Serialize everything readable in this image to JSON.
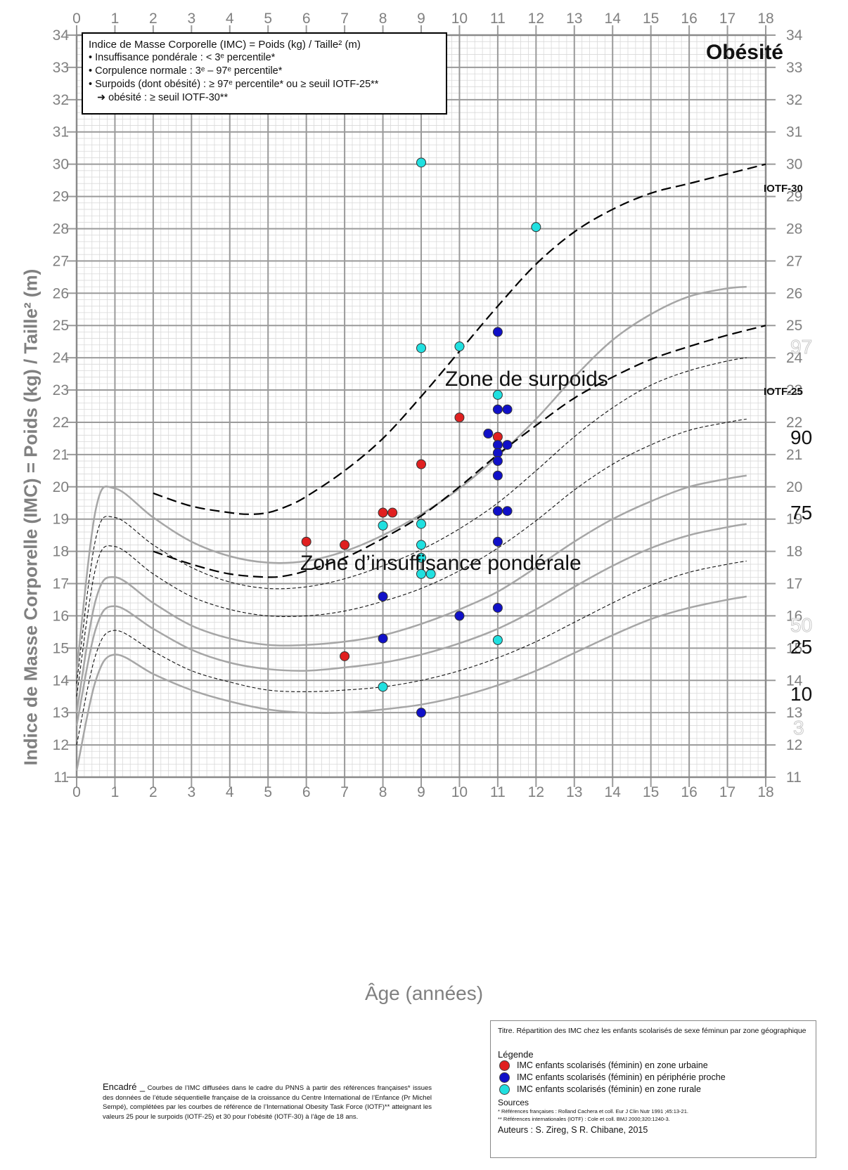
{
  "chart_data": {
    "type": "scatter",
    "title": "",
    "xlabel": "Âge (années)",
    "ylabel": "Indice de Masse Corporelle (IMC) = Poids (kg) / Taille² (m)",
    "xlim": [
      0,
      18
    ],
    "ylim": [
      11,
      34
    ],
    "x_ticks": [
      0,
      1,
      2,
      3,
      4,
      5,
      6,
      7,
      8,
      9,
      10,
      11,
      12,
      13,
      14,
      15,
      16,
      17,
      18
    ],
    "y_ticks": [
      11,
      12,
      13,
      14,
      15,
      16,
      17,
      18,
      19,
      20,
      21,
      22,
      23,
      24,
      25,
      26,
      27,
      28,
      29,
      30,
      31,
      32,
      33,
      34
    ],
    "grid": true,
    "colors": {
      "urbain": "#e02020",
      "periphery": "#1010c8",
      "rural": "#20e0e0",
      "percentile": "#a6a6a6",
      "iotf": "#000000"
    },
    "reference_curves": [
      {
        "name": "3",
        "style": "solid-gray",
        "x": [
          0,
          0.5,
          1,
          2,
          3,
          4,
          5,
          6,
          7,
          8,
          9,
          10,
          11,
          12,
          13,
          14,
          15,
          16,
          17,
          17.5
        ],
        "y": [
          11.2,
          14.0,
          14.8,
          14.2,
          13.7,
          13.35,
          13.1,
          13.0,
          13.0,
          13.1,
          13.25,
          13.5,
          13.85,
          14.3,
          14.85,
          15.4,
          15.9,
          16.25,
          16.5,
          16.6
        ]
      },
      {
        "name": "10",
        "style": "dashed-thin",
        "x": [
          0,
          0.5,
          1,
          2,
          3,
          4,
          5,
          6,
          7,
          8,
          9,
          10,
          11,
          12,
          13,
          14,
          15,
          16,
          17,
          17.5
        ],
        "y": [
          12.0,
          14.8,
          15.55,
          14.9,
          14.3,
          13.95,
          13.7,
          13.65,
          13.7,
          13.8,
          14.0,
          14.3,
          14.7,
          15.2,
          15.8,
          16.4,
          16.95,
          17.35,
          17.6,
          17.7
        ]
      },
      {
        "name": "25",
        "style": "solid-gray",
        "x": [
          0,
          0.5,
          1,
          2,
          3,
          4,
          5,
          6,
          7,
          8,
          9,
          10,
          11,
          12,
          13,
          14,
          15,
          16,
          17,
          17.5
        ],
        "y": [
          12.6,
          15.6,
          16.3,
          15.6,
          14.95,
          14.55,
          14.35,
          14.3,
          14.4,
          14.55,
          14.8,
          15.15,
          15.6,
          16.2,
          16.9,
          17.55,
          18.1,
          18.5,
          18.75,
          18.85
        ]
      },
      {
        "name": "50",
        "style": "solid-gray",
        "x": [
          0,
          0.5,
          1,
          2,
          3,
          4,
          5,
          6,
          7,
          8,
          9,
          10,
          11,
          12,
          13,
          14,
          15,
          16,
          17,
          17.5
        ],
        "y": [
          13.0,
          16.5,
          17.2,
          16.4,
          15.7,
          15.3,
          15.1,
          15.1,
          15.2,
          15.4,
          15.75,
          16.2,
          16.75,
          17.5,
          18.3,
          19.0,
          19.55,
          20.0,
          20.25,
          20.35
        ]
      },
      {
        "name": "75",
        "style": "dashed-thin",
        "x": [
          0,
          0.5,
          1,
          2,
          3,
          4,
          5,
          6,
          7,
          8,
          9,
          10,
          11,
          12,
          13,
          14,
          15,
          16,
          17,
          17.5
        ],
        "y": [
          13.5,
          17.5,
          18.15,
          17.3,
          16.6,
          16.2,
          16.0,
          16.0,
          16.15,
          16.45,
          16.85,
          17.4,
          18.1,
          18.95,
          19.9,
          20.7,
          21.3,
          21.75,
          22.0,
          22.1
        ]
      },
      {
        "name": "90",
        "style": "dashed-thin",
        "x": [
          0,
          0.5,
          1,
          2,
          3,
          4,
          5,
          6,
          7,
          8,
          9,
          10,
          11,
          12,
          13,
          14,
          15,
          16,
          17,
          17.5
        ],
        "y": [
          13.9,
          18.4,
          19.05,
          18.2,
          17.5,
          17.05,
          16.85,
          16.9,
          17.15,
          17.55,
          18.05,
          18.7,
          19.5,
          20.5,
          21.55,
          22.45,
          23.15,
          23.6,
          23.9,
          24.0
        ]
      },
      {
        "name": "97",
        "style": "solid-gray",
        "x": [
          0,
          0.5,
          1,
          2,
          3,
          4,
          5,
          6,
          7,
          8,
          9,
          10,
          11,
          12,
          13,
          14,
          15,
          16,
          17,
          17.5
        ],
        "y": [
          14.3,
          19.3,
          19.95,
          19.05,
          18.3,
          17.85,
          17.65,
          17.7,
          18.0,
          18.5,
          19.15,
          19.95,
          20.95,
          22.1,
          23.4,
          24.55,
          25.35,
          25.9,
          26.15,
          26.2
        ]
      },
      {
        "name": "IOTF-25",
        "style": "dashed-black",
        "x": [
          2,
          3,
          4,
          5,
          5.5,
          6,
          7,
          8,
          9,
          10,
          11,
          12,
          13,
          14,
          15,
          16,
          17,
          18
        ],
        "y": [
          18.0,
          17.6,
          17.3,
          17.2,
          17.25,
          17.4,
          17.8,
          18.4,
          19.1,
          20.0,
          21.0,
          21.9,
          22.75,
          23.4,
          23.95,
          24.35,
          24.7,
          25.0
        ]
      },
      {
        "name": "IOTF-30",
        "style": "dashed-black",
        "x": [
          2,
          3,
          4,
          4.5,
          5,
          5.5,
          6,
          7,
          8,
          9,
          10,
          11,
          12,
          13,
          14,
          15,
          16,
          17,
          18
        ],
        "y": [
          19.8,
          19.4,
          19.2,
          19.15,
          19.2,
          19.4,
          19.7,
          20.5,
          21.5,
          22.8,
          24.2,
          25.6,
          26.9,
          27.9,
          28.6,
          29.1,
          29.4,
          29.7,
          30.0
        ]
      }
    ],
    "series": [
      {
        "name": "IMC enfants scolarisés (féminin) en zone urbaine",
        "color": "#e02020",
        "points": [
          [
            6,
            18.3
          ],
          [
            7,
            18.2
          ],
          [
            7,
            14.75
          ],
          [
            8,
            19.2
          ],
          [
            8.25,
            19.2
          ],
          [
            9,
            20.7
          ],
          [
            10,
            22.15
          ],
          [
            11,
            21.55
          ]
        ]
      },
      {
        "name": "IMC enfants scolarisés (féminin) en périphérie proche",
        "color": "#1010c8",
        "points": [
          [
            8,
            16.6
          ],
          [
            8,
            15.3
          ],
          [
            9,
            13.0
          ],
          [
            10,
            16.0
          ],
          [
            10.75,
            21.65
          ],
          [
            11,
            24.8
          ],
          [
            11,
            22.4
          ],
          [
            11.25,
            22.4
          ],
          [
            11,
            21.3
          ],
          [
            11.25,
            21.3
          ],
          [
            11,
            21.05
          ],
          [
            11,
            20.8
          ],
          [
            11,
            20.35
          ],
          [
            11,
            19.25
          ],
          [
            11.25,
            19.25
          ],
          [
            11,
            18.3
          ],
          [
            11,
            16.25
          ]
        ]
      },
      {
        "name": "IMC enfants scolarisés (féminin) en zone rurale",
        "color": "#20e0e0",
        "points": [
          [
            9,
            30.05
          ],
          [
            12,
            28.05
          ],
          [
            9,
            24.3
          ],
          [
            10,
            24.35
          ],
          [
            11,
            22.85
          ],
          [
            8,
            18.8
          ],
          [
            9,
            18.85
          ],
          [
            9,
            18.2
          ],
          [
            9,
            17.8
          ],
          [
            9,
            17.3
          ],
          [
            9.25,
            17.3
          ],
          [
            8,
            13.8
          ],
          [
            11,
            15.25
          ]
        ]
      }
    ]
  },
  "info_box": {
    "line1": "Indice de Masse Corporelle (IMC) = Poids (kg) / Taille² (m)",
    "line2": "• Insuffisance pondérale : < 3ᵉ percentile*",
    "line3": "• Corpulence normale : 3ᵉ – 97ᵉ percentile*",
    "line4": "• Surpoids (dont obésité) : ≥ 97ᵉ percentile* ou ≥ seuil IOTF-25**",
    "line5": "➜ obésité : ≥ seuil IOTF-30**"
  },
  "zones": {
    "obesite": "Obésité",
    "surpoids": "Zone de surpoids",
    "insuffisance": "Zone d’insuffisance pondérale"
  },
  "curve_labels": {
    "iotf30": "IOTF-30",
    "iotf25": "IOTF-25",
    "p97": "97",
    "p90": "90",
    "p75": "75",
    "p50": "50",
    "p25": "25",
    "p10": "10",
    "p3": "3"
  },
  "encadre": {
    "heading": "Encadré _",
    "text": "Courbes de l’IMC diffusées dans le cadre du PNNS à partir des références françaises* issues des données de l’étude séquentielle française de la croissance du Centre International de l’Enfance (Pr Michel Sempé), complétées par les courbes de référence de l’International Obesity Task Force (IOTF)** atteignant les valeurs 25 pour le surpoids (IOTF-25) et 30 pour l’obésité (IOTF-30) à l’âge de 18 ans."
  },
  "legend_box": {
    "title": "Titre. Répartition des IMC chez les enfants scolarisés de sexe féminun par zone géographique",
    "legende": "Légende",
    "item_urbain": "IMC enfants scolarisés (féminin) en zone urbaine",
    "item_periph": "IMC enfants scolarisés (féminin) en périphérie proche",
    "item_rural": "IMC enfants scolarisés (féminin) en zone rurale",
    "sources": "Sources",
    "ref1": "* Références françaises : Rolland Cachera et coll. Eur J Clin Nutr 1991 ;45:13-21.",
    "ref2": "** Références internationales (IOTF) : Cole et coll. BMJ 2000;320:1240-3.",
    "auteurs": "Auteurs : S. Zireg, S R. Chibane, 2015"
  }
}
